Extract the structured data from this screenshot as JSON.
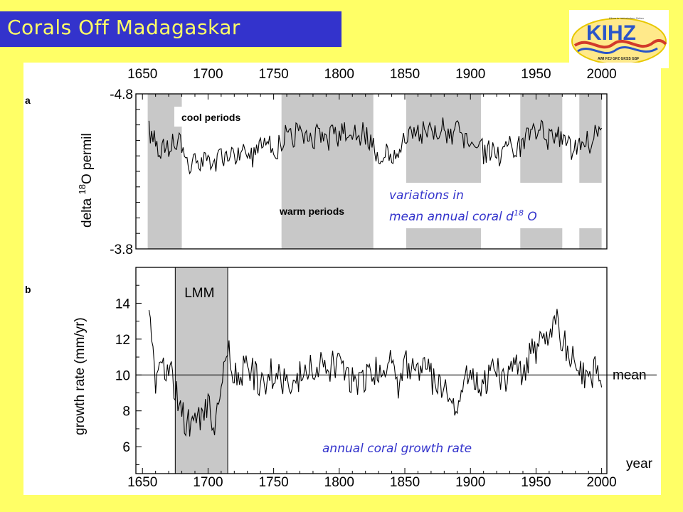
{
  "header": {
    "title": "Corals Off Madagaskar"
  },
  "logo": {
    "text": "KIHZ",
    "caption": "Klima in historischen Zeiten",
    "partners": "AWI  FZJ  GFZ  GKSS  GSF"
  },
  "colors": {
    "background": "#ffff66",
    "title_bar": "#3333cc",
    "title_text": "#ffff66",
    "annotation": "#3333cc",
    "shading": "#c8c8c8"
  },
  "chart_data": [
    {
      "type": "line",
      "panel_label": "a",
      "ylabel": "delta 18O permil",
      "ylabel_parts": {
        "pre": "delta ",
        "sup": "18",
        "post": "O permil"
      },
      "x_ticks": [
        1650,
        1700,
        1750,
        1800,
        1850,
        1900,
        1950,
        2000
      ],
      "xlim": [
        1645,
        2004
      ],
      "ylim": [
        -4.8,
        -3.8
      ],
      "y_reversed": true,
      "y_tick_labels": [
        "-4.8",
        "-3.8"
      ],
      "shaded_periods": [
        [
          1654,
          1680
        ],
        [
          1756,
          1826
        ],
        [
          1851,
          1908
        ],
        [
          1938,
          1970
        ],
        [
          1983,
          2000
        ]
      ],
      "period_labels": [
        "cool periods",
        "warm periods"
      ],
      "annotation": {
        "line1": "variations in",
        "line2_pre": "mean annual coral d",
        "line2_sup": "18",
        "line2_post": " O"
      },
      "series": [
        {
          "x": [
            1655,
            1660,
            1665,
            1670,
            1675,
            1680,
            1685,
            1690,
            1695,
            1700,
            1705,
            1710,
            1715,
            1720,
            1725,
            1730,
            1735,
            1740,
            1745,
            1750,
            1755,
            1760,
            1765,
            1770,
            1775,
            1780,
            1785,
            1790,
            1795,
            1800,
            1805,
            1810,
            1815,
            1820,
            1825,
            1830,
            1835,
            1840,
            1845,
            1850,
            1855,
            1860,
            1865,
            1870,
            1875,
            1880,
            1885,
            1890,
            1895,
            1900,
            1905,
            1910,
            1915,
            1920,
            1925,
            1930,
            1935,
            1940,
            1945,
            1950,
            1955,
            1960,
            1965,
            1970,
            1975,
            1980,
            1985,
            1990,
            1995,
            2000
          ],
          "values": [
            -4.55,
            -4.48,
            -4.43,
            -4.47,
            -4.5,
            -4.46,
            -4.33,
            -4.4,
            -4.36,
            -4.38,
            -4.35,
            -4.4,
            -4.38,
            -4.42,
            -4.4,
            -4.45,
            -4.38,
            -4.46,
            -4.5,
            -4.42,
            -4.47,
            -4.55,
            -4.53,
            -4.56,
            -4.52,
            -4.52,
            -4.55,
            -4.5,
            -4.53,
            -4.54,
            -4.55,
            -4.57,
            -4.52,
            -4.55,
            -4.5,
            -4.4,
            -4.45,
            -4.42,
            -4.45,
            -4.5,
            -4.52,
            -4.57,
            -4.55,
            -4.58,
            -4.55,
            -4.58,
            -4.52,
            -4.55,
            -4.5,
            -4.45,
            -4.53,
            -4.42,
            -4.43,
            -4.4,
            -4.42,
            -4.45,
            -4.45,
            -4.48,
            -4.52,
            -4.55,
            -4.57,
            -4.5,
            -4.55,
            -4.48,
            -4.45,
            -4.45,
            -4.5,
            -4.48,
            -4.52,
            -4.5
          ]
        }
      ]
    },
    {
      "type": "line",
      "panel_label": "b",
      "ylabel": "growth rate (mm/yr)",
      "xlabel": "year",
      "x_ticks": [
        1650,
        1700,
        1750,
        1800,
        1850,
        1900,
        1950,
        2000
      ],
      "xlim": [
        1645,
        2004
      ],
      "y_ticks": [
        6,
        8,
        10,
        12,
        14
      ],
      "ylim": [
        4.5,
        16
      ],
      "shaded_periods": [
        [
          1675,
          1715
        ]
      ],
      "period_labels": [
        "LMM"
      ],
      "mean_value": 10,
      "mean_label": "mean",
      "annotation": "annual coral growth rate",
      "series": [
        {
          "x": [
            1655,
            1660,
            1665,
            1670,
            1675,
            1680,
            1685,
            1690,
            1695,
            1700,
            1705,
            1710,
            1715,
            1720,
            1725,
            1730,
            1735,
            1740,
            1745,
            1750,
            1755,
            1760,
            1765,
            1770,
            1775,
            1780,
            1785,
            1790,
            1795,
            1800,
            1805,
            1810,
            1815,
            1820,
            1825,
            1830,
            1835,
            1840,
            1845,
            1850,
            1855,
            1860,
            1865,
            1870,
            1875,
            1880,
            1885,
            1890,
            1895,
            1900,
            1905,
            1910,
            1915,
            1920,
            1925,
            1930,
            1935,
            1940,
            1945,
            1950,
            1955,
            1960,
            1965,
            1970,
            1975,
            1980,
            1985,
            1990,
            1995,
            2000
          ],
          "values": [
            13.5,
            9.8,
            10.2,
            10.5,
            9.0,
            7.8,
            7.2,
            8.0,
            7.5,
            8.5,
            7.3,
            9.8,
            11.5,
            10.0,
            10.2,
            10.5,
            10.0,
            9.6,
            9.8,
            10.2,
            10.0,
            9.2,
            9.5,
            10.0,
            10.5,
            10.4,
            10.8,
            10.2,
            10.5,
            10.6,
            10.0,
            9.8,
            9.5,
            9.8,
            10.0,
            10.5,
            10.2,
            10.6,
            9.5,
            10.8,
            10.3,
            10.0,
            10.5,
            9.8,
            9.2,
            9.5,
            8.5,
            8.0,
            9.5,
            10.0,
            9.6,
            9.3,
            10.0,
            10.5,
            9.6,
            10.0,
            10.5,
            10.2,
            11.0,
            11.5,
            12.5,
            12.0,
            13.0,
            12.0,
            11.0,
            10.8,
            10.0,
            9.5,
            10.5,
            10.0
          ]
        }
      ]
    }
  ]
}
